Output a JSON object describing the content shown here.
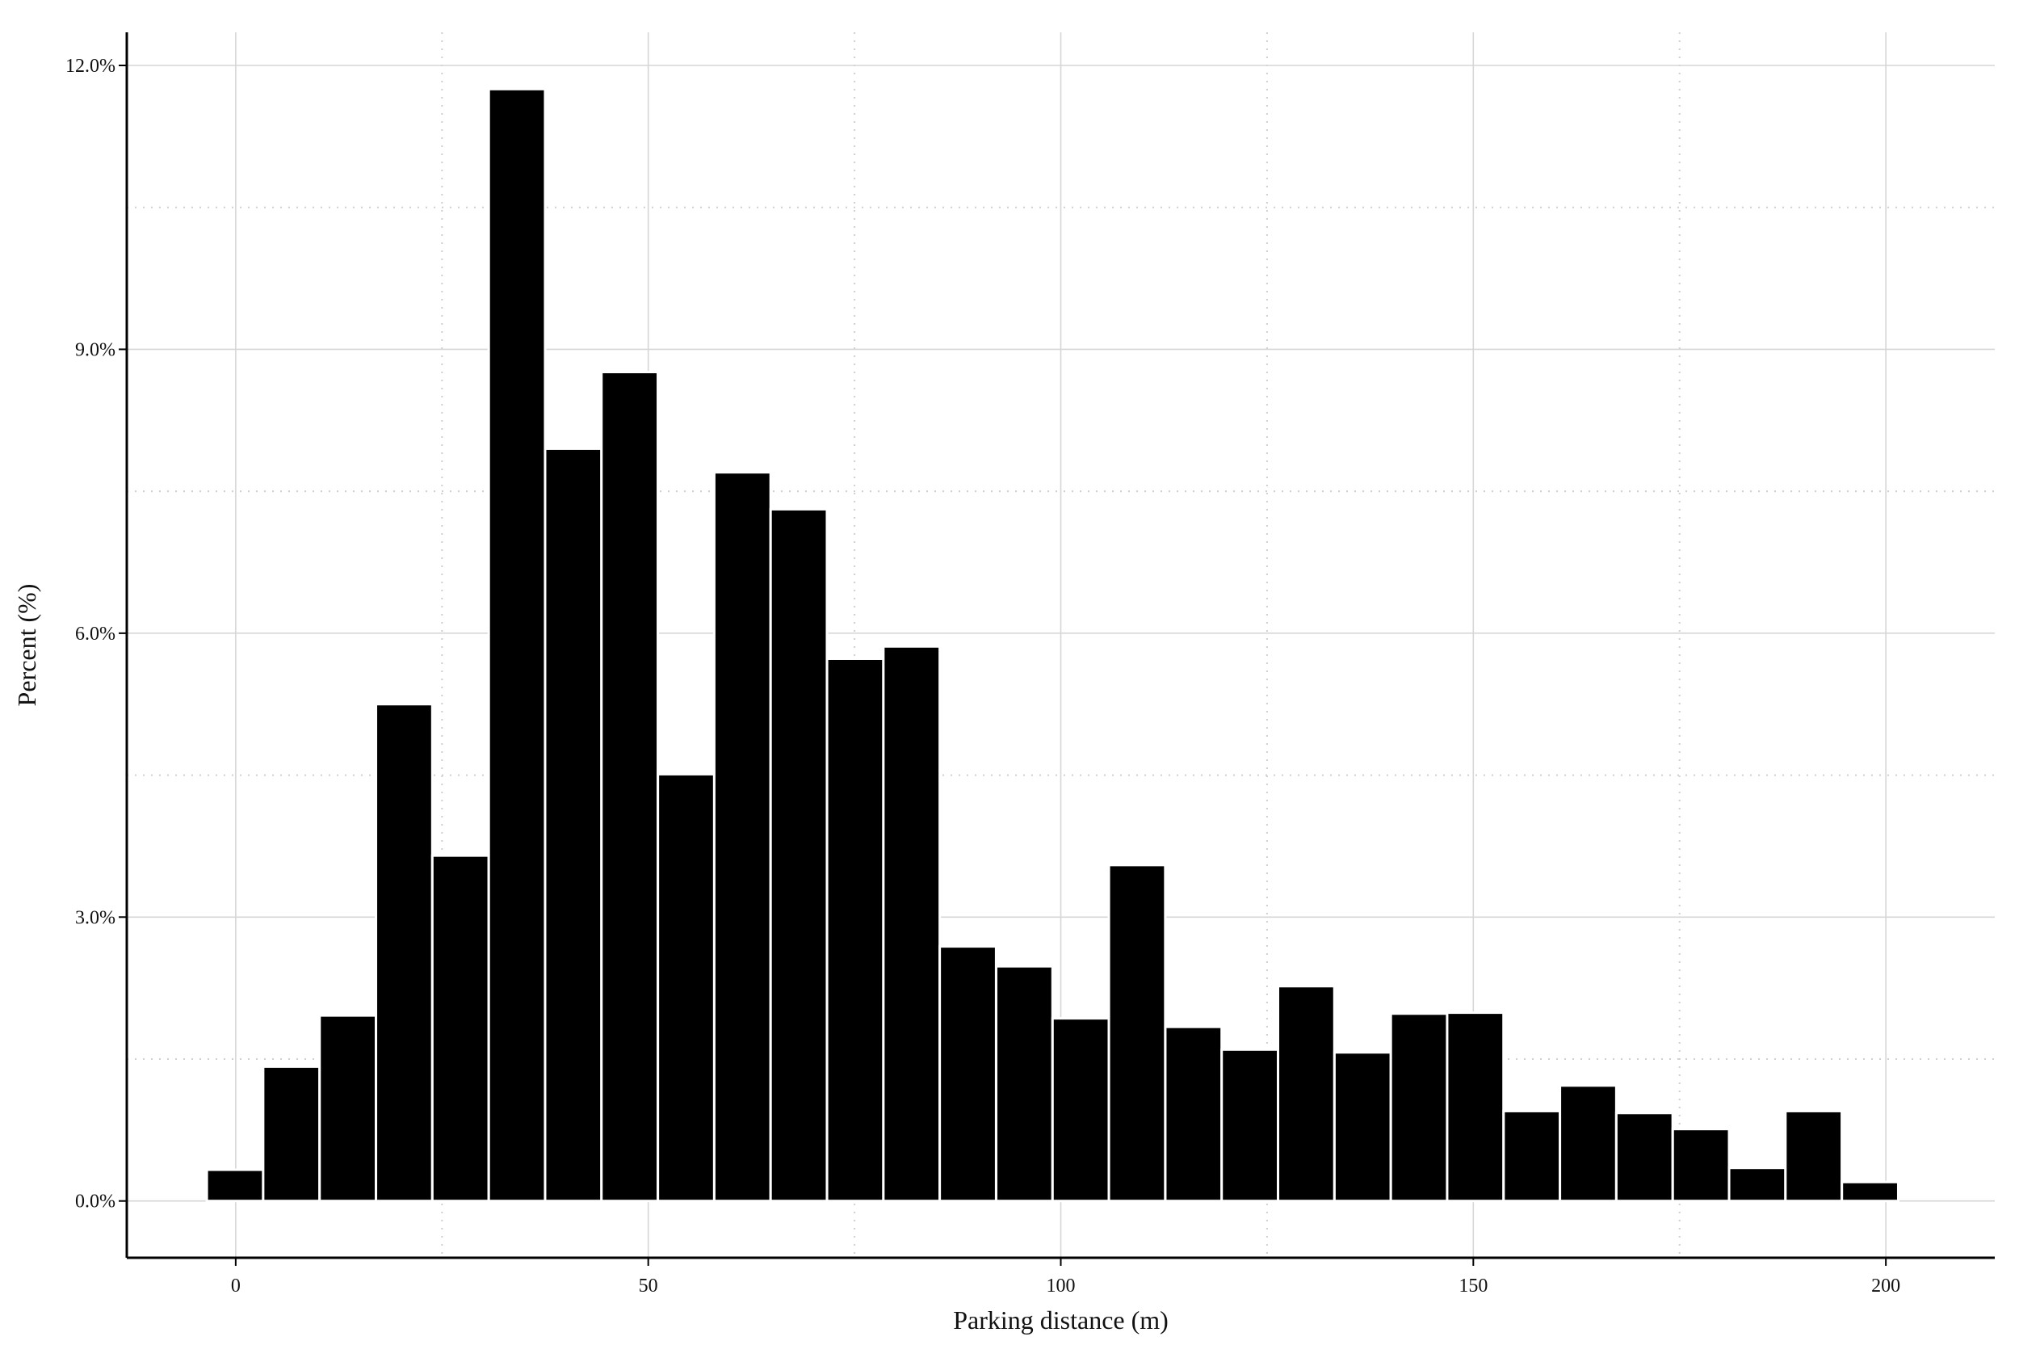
{
  "chart_data": {
    "type": "bar",
    "subtype": "histogram",
    "xlabel": "Parking distance (m)",
    "ylabel": "Percent (%)",
    "xlim": [
      -13.2,
      213.2
    ],
    "ylim": [
      -0.6,
      12.35
    ],
    "x_ticks": [
      0,
      50,
      100,
      150,
      200
    ],
    "x_tick_labels": [
      "0",
      "50",
      "100",
      "150",
      "200"
    ],
    "y_ticks": [
      0,
      3,
      6,
      9,
      12
    ],
    "y_tick_labels": [
      "0.0%",
      "3.0%",
      "6.0%",
      "9.0%",
      "12.0%"
    ],
    "x_minor_ticks": [
      25,
      75,
      125,
      175
    ],
    "y_minor_ticks": [
      1.5,
      4.5,
      7.5,
      10.5
    ],
    "grid": true,
    "legend": false,
    "bar_color": "#000000",
    "bar_edge_color": "#ffffff",
    "bins": {
      "left_edges": [
        -3.5,
        3.33,
        10.17,
        17.0,
        23.83,
        30.67,
        37.5,
        44.33,
        51.17,
        58.0,
        64.83,
        71.67,
        78.5,
        85.33,
        92.17,
        99.0,
        105.83,
        112.67,
        119.5,
        126.33,
        133.17,
        140.0,
        146.83,
        153.67,
        160.5,
        167.33,
        174.17,
        181.0,
        187.83,
        194.67
      ],
      "width": 6.83
    },
    "values": [
      0.33,
      1.42,
      1.96,
      5.25,
      3.65,
      11.75,
      7.95,
      8.76,
      4.51,
      7.7,
      7.31,
      5.73,
      5.86,
      2.69,
      2.48,
      1.93,
      3.55,
      1.84,
      1.6,
      2.27,
      1.57,
      1.98,
      1.99,
      0.95,
      1.22,
      0.93,
      0.76,
      0.35,
      0.95,
      0.2
    ]
  }
}
